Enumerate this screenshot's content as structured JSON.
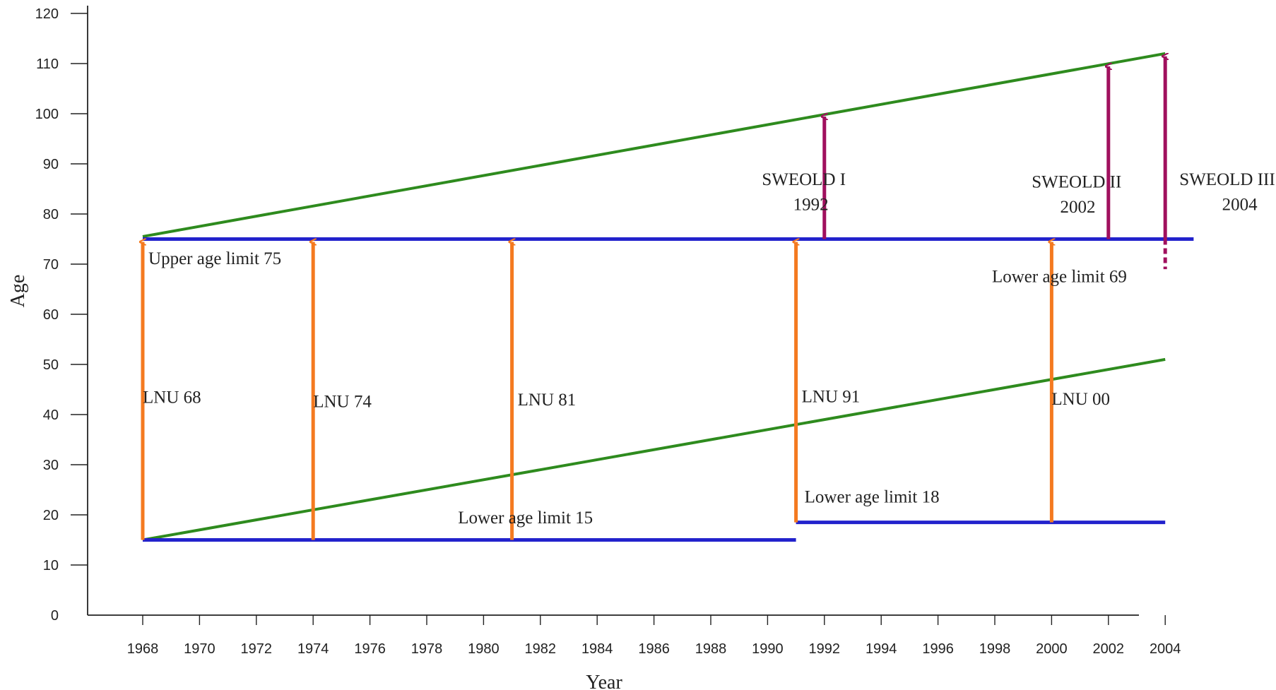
{
  "chart_data": {
    "type": "line",
    "xlabel": "Year",
    "ylabel": "Age",
    "xlim": [
      1968,
      2004
    ],
    "ylim": [
      0,
      120
    ],
    "x_ticks": [
      "1968",
      "1970",
      "1972",
      "1974",
      "1976",
      "1978",
      "1980",
      "1982",
      "1984",
      "1986",
      "1988",
      "1990",
      "1992",
      "1994",
      "1996",
      "1998",
      "2000",
      "2002",
      "2004"
    ],
    "y_ticks": [
      "0",
      "10",
      "20",
      "30",
      "40",
      "50",
      "60",
      "70",
      "80",
      "90",
      "100",
      "110",
      "120"
    ],
    "grid": false,
    "colors": {
      "green": "#2e8b1e",
      "blue": "#2222cc",
      "orange": "#f47a20",
      "purple": "#a0105e",
      "axis": "#222222"
    },
    "cohort_lines": [
      {
        "x": [
          1968,
          2004
        ],
        "y": [
          75.5,
          112
        ]
      },
      {
        "x": [
          1968,
          2004
        ],
        "y": [
          15,
          51
        ]
      }
    ],
    "limit_lines": [
      {
        "x": [
          1968,
          2005
        ],
        "y": [
          75,
          75
        ]
      },
      {
        "x": [
          1968,
          1991
        ],
        "y": [
          15,
          15
        ]
      },
      {
        "x": [
          1991,
          2004
        ],
        "y": [
          18.5,
          18.5
        ]
      }
    ],
    "lnu_arrows": [
      {
        "x": 1968,
        "y_from": 15,
        "y_to": 75
      },
      {
        "x": 1974,
        "y_from": 15,
        "y_to": 75
      },
      {
        "x": 1981,
        "y_from": 15,
        "y_to": 75
      },
      {
        "x": 1991,
        "y_from": 18.5,
        "y_to": 75
      },
      {
        "x": 2000,
        "y_from": 18.5,
        "y_to": 75
      }
    ],
    "sweold_arrows": [
      {
        "x": 1992,
        "y_from": 75,
        "y_to": 100
      },
      {
        "x": 2002,
        "y_from": 75,
        "y_to": 110
      },
      {
        "x": 2004,
        "y_from": 75,
        "y_to": 112
      }
    ],
    "dashed_extension": {
      "x": 2004,
      "y_from": 75,
      "y_to": 69
    },
    "annotations": [
      {
        "text": "Upper age limit 75",
        "x": 1968.2,
        "y": 70
      },
      {
        "text": "Lower age limit 15",
        "x": 1979.1,
        "y": 18.3
      },
      {
        "text": "Lower age limit 18",
        "x": 1991.3,
        "y": 22.5
      },
      {
        "text": "Lower age limit 69",
        "x": 1997.9,
        "y": 66.4
      },
      {
        "text": "LNU 68",
        "x": 1968.0,
        "y": 42.3
      },
      {
        "text": "LNU 74",
        "x": 1974.0,
        "y": 41.5
      },
      {
        "text": "LNU 81",
        "x": 1981.2,
        "y": 41.8
      },
      {
        "text": "LNU 91",
        "x": 1991.2,
        "y": 42.5
      },
      {
        "text": "LNU 00",
        "x": 2000.0,
        "y": 42.0
      },
      {
        "text": "SWEOLD I",
        "x": 1989.8,
        "y": 85.8
      },
      {
        "text": "1992",
        "x": 1990.9,
        "y": 80.8
      },
      {
        "text": "SWEOLD II",
        "x": 1999.3,
        "y": 85.3
      },
      {
        "text": "2002",
        "x": 2000.3,
        "y": 80.3
      },
      {
        "text": "SWEOLD III",
        "x": 2004.5,
        "y": 85.8
      },
      {
        "text": "2004",
        "x": 2006.0,
        "y": 80.8
      }
    ]
  }
}
